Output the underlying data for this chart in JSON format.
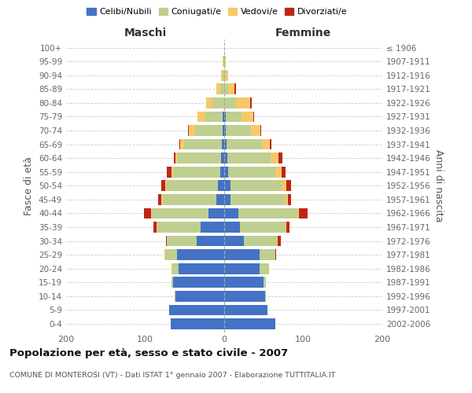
{
  "age_groups": [
    "0-4",
    "5-9",
    "10-14",
    "15-19",
    "20-24",
    "25-29",
    "30-34",
    "35-39",
    "40-44",
    "45-49",
    "50-54",
    "55-59",
    "60-64",
    "65-69",
    "70-74",
    "75-79",
    "80-84",
    "85-89",
    "90-94",
    "95-99",
    "100+"
  ],
  "birth_years": [
    "2002-2006",
    "1997-2001",
    "1992-1996",
    "1987-1991",
    "1982-1986",
    "1977-1981",
    "1972-1976",
    "1967-1971",
    "1962-1966",
    "1957-1961",
    "1952-1956",
    "1947-1951",
    "1942-1946",
    "1937-1941",
    "1932-1936",
    "1927-1931",
    "1922-1926",
    "1917-1921",
    "1912-1916",
    "1907-1911",
    "≤ 1906"
  ],
  "maschi": {
    "celibi": [
      68,
      70,
      62,
      65,
      58,
      60,
      35,
      30,
      20,
      10,
      8,
      5,
      4,
      3,
      2,
      2,
      0,
      0,
      0,
      0,
      0
    ],
    "coniugati": [
      0,
      0,
      1,
      2,
      8,
      15,
      38,
      55,
      72,
      68,
      65,
      60,
      55,
      48,
      35,
      22,
      15,
      5,
      2,
      1,
      0
    ],
    "vedovi": [
      0,
      0,
      0,
      0,
      1,
      1,
      0,
      1,
      1,
      2,
      2,
      2,
      3,
      5,
      8,
      10,
      8,
      5,
      2,
      1,
      0
    ],
    "divorziati": [
      0,
      0,
      0,
      0,
      0,
      0,
      1,
      4,
      8,
      4,
      5,
      6,
      2,
      1,
      1,
      0,
      0,
      0,
      0,
      0,
      0
    ]
  },
  "femmine": {
    "nubili": [
      65,
      55,
      52,
      50,
      45,
      45,
      25,
      20,
      18,
      8,
      8,
      5,
      4,
      3,
      2,
      2,
      0,
      0,
      0,
      0,
      0
    ],
    "coniugate": [
      0,
      0,
      1,
      3,
      12,
      20,
      42,
      58,
      75,
      70,
      65,
      60,
      55,
      45,
      32,
      20,
      15,
      5,
      2,
      1,
      0
    ],
    "vedove": [
      0,
      0,
      0,
      0,
      0,
      0,
      1,
      1,
      2,
      3,
      6,
      8,
      10,
      10,
      12,
      15,
      18,
      8,
      3,
      1,
      0
    ],
    "divorziate": [
      0,
      0,
      0,
      0,
      0,
      1,
      4,
      4,
      10,
      4,
      6,
      5,
      5,
      2,
      1,
      1,
      2,
      2,
      0,
      0,
      0
    ]
  },
  "colors": {
    "celibi": "#4472C4",
    "coniugati": "#BFCF8F",
    "vedovi": "#F5C96A",
    "divorziati": "#C0251A"
  },
  "xlim": 200,
  "title": "Popolazione per età, sesso e stato civile - 2007",
  "subtitle": "COMUNE DI MONTEROSI (VT) - Dati ISTAT 1° gennaio 2007 - Elaborazione TUTTITALIA.IT",
  "ylabel_left": "Fasce di età",
  "ylabel_right": "Anni di nascita",
  "xlabel_left": "Maschi",
  "xlabel_right": "Femmine",
  "background_color": "#ffffff",
  "grid_color": "#cccccc"
}
